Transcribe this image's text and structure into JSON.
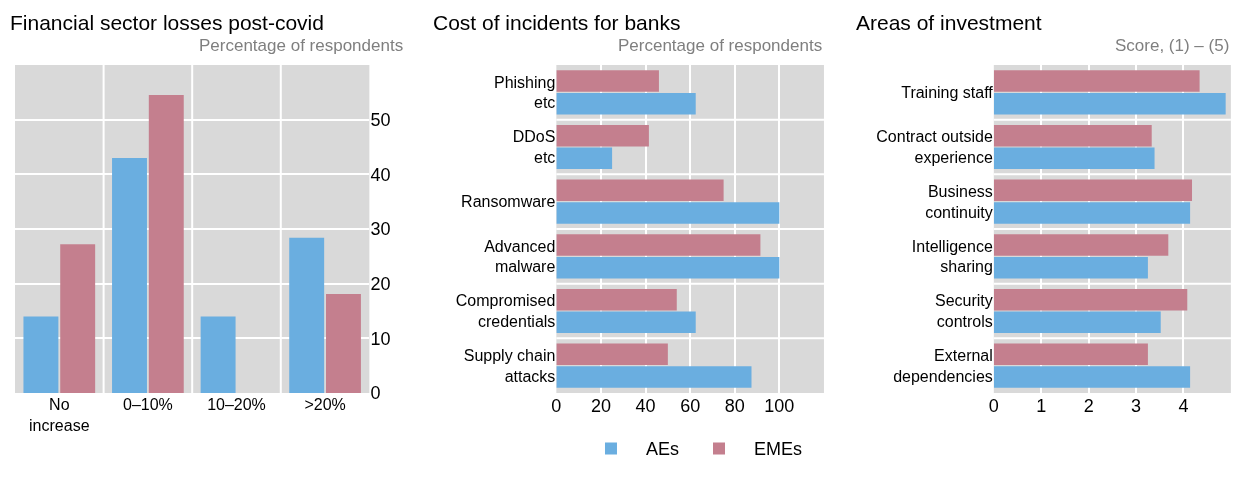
{
  "chart_data": [
    {
      "type": "bar",
      "title": "Financial sector losses post-covid",
      "ylabel": "Percentage of respondents",
      "categories": [
        "No\nincrease",
        "0–10%",
        "10–20%",
        ">20%"
      ],
      "series": [
        {
          "name": "AEs",
          "color": "#6aaee0",
          "values": [
            14,
            43,
            14,
            28.4
          ]
        },
        {
          "name": "EMEs",
          "color": "#c47f8e",
          "values": [
            27.2,
            54.5,
            0,
            18.1
          ]
        }
      ],
      "ylim": [
        0,
        60
      ],
      "yticks": [
        0,
        10,
        20,
        30,
        40,
        50
      ],
      "grid": true,
      "legend": "bottom"
    },
    {
      "type": "bar",
      "orientation": "horizontal",
      "title": "Cost of incidents for banks",
      "xlabel": "Percentage of respondents",
      "categories": [
        "Phishing\netc",
        "DDoS\netc",
        "Ransomware",
        "Advanced\nmalware",
        "Compromised\ncredentials",
        "Supply chain\nattacks"
      ],
      "series": [
        {
          "color": "#6aaee0",
          "values": [
            62.5,
            25,
            100,
            100,
            62.5,
            87.5
          ]
        },
        {
          "color": "#c47f8e",
          "values": [
            46,
            41.5,
            75,
            91.5,
            54,
            50
          ]
        }
      ],
      "xlim": [
        0,
        120
      ],
      "xticks": [
        0,
        20,
        40,
        60,
        80,
        100
      ],
      "grid": true,
      "legend": "bottom"
    },
    {
      "type": "bar",
      "orientation": "horizontal",
      "title": "Areas of investment",
      "xlabel": "Score, (1) – (5)",
      "categories": [
        "Training staff",
        "Contract outside\nexperience",
        "Business\ncontinuity",
        "Intelligence\nsharing",
        "Security\ncontrols",
        "External\ndependencies"
      ],
      "series": [
        {
          "color": "#6aaee0",
          "values": [
            4.89,
            3.39,
            4.14,
            3.25,
            3.52,
            4.14
          ]
        },
        {
          "color": "#c47f8e",
          "values": [
            4.34,
            3.33,
            4.18,
            3.68,
            4.08,
            3.25
          ]
        }
      ],
      "xlim": [
        0,
        5
      ],
      "xticks": [
        0,
        1,
        2,
        3,
        4
      ],
      "grid": true,
      "legend": "bottom"
    }
  ]
}
